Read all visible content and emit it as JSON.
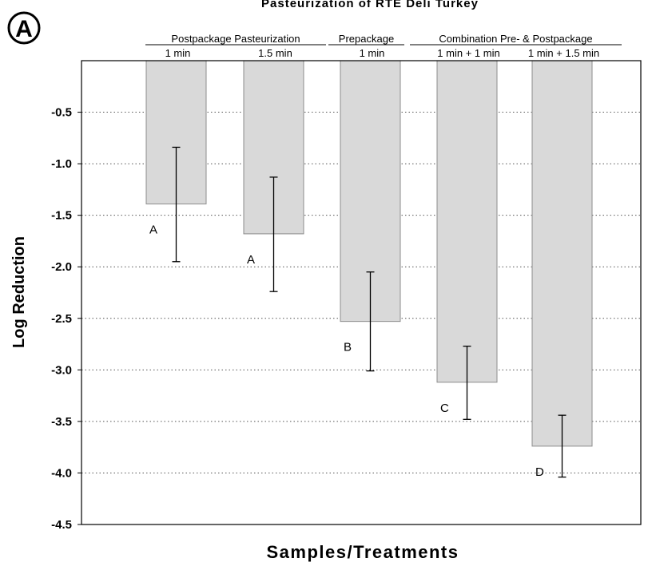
{
  "chart_data": {
    "type": "bar",
    "title": "Pasteurization of RTE Deli Turkey",
    "panel_label": "A",
    "xlabel": "Samples/Treatments",
    "ylabel": "Log Reduction",
    "ylim": [
      -4.5,
      0
    ],
    "y_ticks": [
      "-0.5",
      "-1.0",
      "-1.5",
      "-2.0",
      "-2.5",
      "-3.0",
      "-3.5",
      "-4.0",
      "-4.5"
    ],
    "y_tick_values": [
      -0.5,
      -1.0,
      -1.5,
      -2.0,
      -2.5,
      -3.0,
      -3.5,
      -4.0,
      -4.5
    ],
    "grid": "horizontal dotted",
    "group_labels": [
      {
        "text": "Postpackage Pasteurization",
        "bars": [
          0,
          1
        ]
      },
      {
        "text": "Prepackage",
        "bars": [
          2,
          2
        ]
      },
      {
        "text": "Combination Pre- & Postpackage",
        "bars": [
          3,
          4
        ]
      }
    ],
    "categories": [
      "1 min",
      "1.5 min",
      "1 min",
      "1 min + 1 min",
      "1 min + 1.5 min"
    ],
    "values": [
      -1.39,
      -1.68,
      -2.53,
      -3.12,
      -3.74
    ],
    "error_upper": [
      -0.84,
      -1.13,
      -2.05,
      -2.77,
      -3.44
    ],
    "error_lower": [
      -1.95,
      -2.24,
      -3.01,
      -3.48,
      -4.04
    ],
    "significance_letters": [
      "A",
      "A",
      "B",
      "C",
      "D"
    ],
    "colors": {
      "bar_fill": "#d9d9d9",
      "bar_stroke": "#8c8c8c",
      "axis": "#000000",
      "grid": "#555555"
    }
  }
}
